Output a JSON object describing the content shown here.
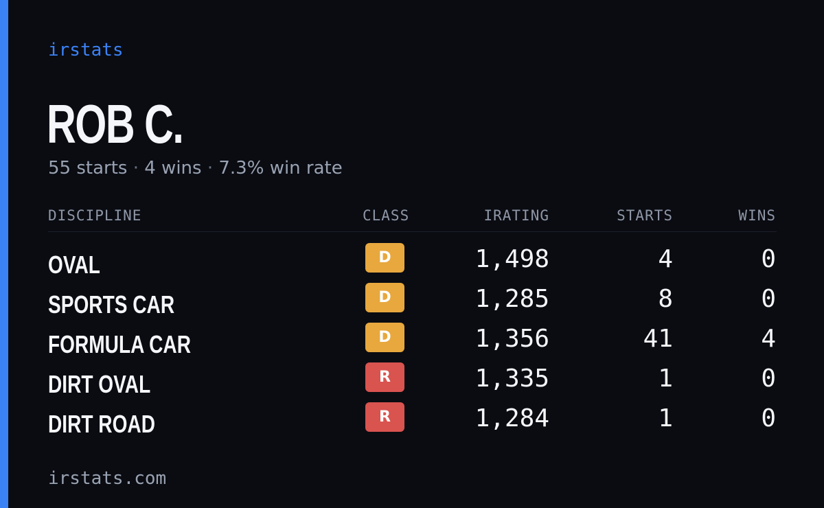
{
  "brand": "irstats",
  "profile": {
    "name": "ROB C.",
    "starts_text": "55 starts",
    "separator": "·",
    "wins_text": "4 wins",
    "win_rate_text": "7.3% win rate"
  },
  "table": {
    "headers": {
      "discipline": "DISCIPLINE",
      "class": "CLASS",
      "irating": "IRATING",
      "starts": "STARTS",
      "wins": "WINS"
    },
    "rows": [
      {
        "discipline": "OVAL",
        "class": "D",
        "irating": "1,498",
        "starts": "4",
        "wins": "0"
      },
      {
        "discipline": "SPORTS CAR",
        "class": "D",
        "irating": "1,285",
        "starts": "8",
        "wins": "0"
      },
      {
        "discipline": "FORMULA CAR",
        "class": "D",
        "irating": "1,356",
        "starts": "41",
        "wins": "4"
      },
      {
        "discipline": "DIRT OVAL",
        "class": "R",
        "irating": "1,335",
        "starts": "1",
        "wins": "0"
      },
      {
        "discipline": "DIRT ROAD",
        "class": "R",
        "irating": "1,284",
        "starts": "1",
        "wins": "0"
      }
    ]
  },
  "class_colors": {
    "D": "#e8a83e",
    "R": "#d9534f"
  },
  "colors": {
    "accent": "#3b82f6",
    "background": "#0a0c12"
  },
  "footer": "irstats.com"
}
